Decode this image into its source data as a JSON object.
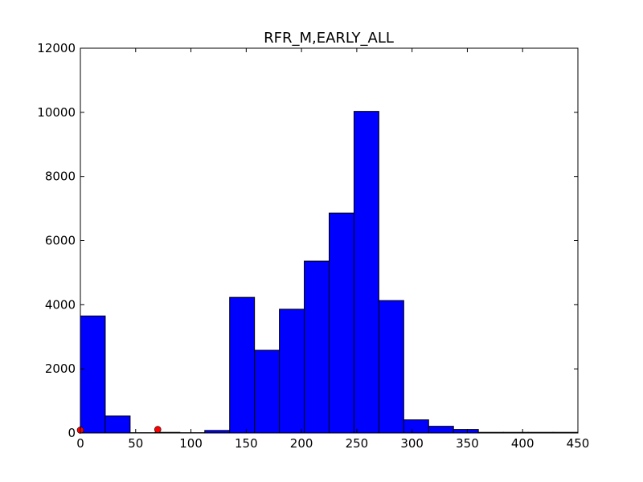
{
  "chart_data": {
    "type": "bar",
    "title": "RFR_M,EARLY_ALL",
    "xlabel": "",
    "ylabel": "",
    "xlim": [
      0,
      450
    ],
    "ylim": [
      0,
      12000
    ],
    "x_ticks": [
      0,
      50,
      100,
      150,
      200,
      250,
      300,
      350,
      400,
      450
    ],
    "y_ticks": [
      0,
      2000,
      4000,
      6000,
      8000,
      10000,
      12000
    ],
    "grid": false,
    "bar_color": "#0000ff",
    "bins": [
      {
        "start": 0,
        "end": 22.5,
        "value": 3650
      },
      {
        "start": 22.5,
        "end": 45,
        "value": 530
      },
      {
        "start": 45,
        "end": 67.5,
        "value": 10
      },
      {
        "start": 67.5,
        "end": 90,
        "value": 20
      },
      {
        "start": 90,
        "end": 112.5,
        "value": 10
      },
      {
        "start": 112.5,
        "end": 135,
        "value": 80
      },
      {
        "start": 135,
        "end": 157.5,
        "value": 4230
      },
      {
        "start": 157.5,
        "end": 180,
        "value": 2580
      },
      {
        "start": 180,
        "end": 202.5,
        "value": 3860
      },
      {
        "start": 202.5,
        "end": 225,
        "value": 5360
      },
      {
        "start": 225,
        "end": 247.5,
        "value": 6860
      },
      {
        "start": 247.5,
        "end": 270,
        "value": 10030
      },
      {
        "start": 270,
        "end": 292.5,
        "value": 4130
      },
      {
        "start": 292.5,
        "end": 315,
        "value": 410
      },
      {
        "start": 315,
        "end": 337.5,
        "value": 210
      },
      {
        "start": 337.5,
        "end": 360,
        "value": 110
      },
      {
        "start": 360,
        "end": 382.5,
        "value": 20
      },
      {
        "start": 382.5,
        "end": 405,
        "value": 20
      },
      {
        "start": 405,
        "end": 427.5,
        "value": 20
      },
      {
        "start": 427.5,
        "end": 450,
        "value": 20
      }
    ],
    "markers": {
      "color": "#ff0000",
      "points": [
        {
          "x": 0,
          "y": 90
        },
        {
          "x": 70,
          "y": 110
        }
      ]
    }
  }
}
